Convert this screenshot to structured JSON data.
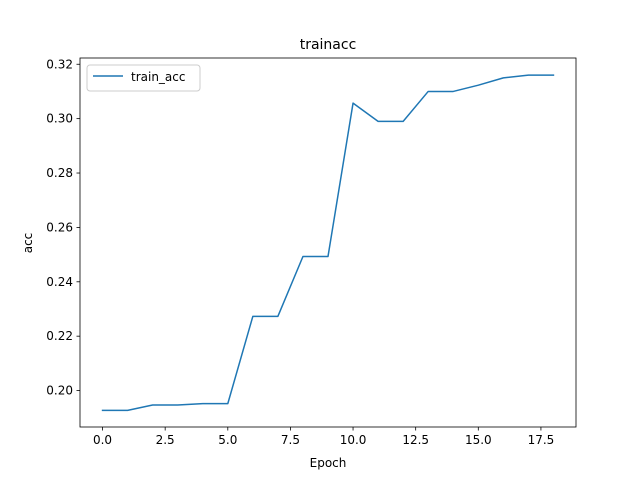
{
  "chart_data": {
    "type": "line",
    "title": "trainacc",
    "xlabel": "Epoch",
    "ylabel": "acc",
    "xlim": [
      -0.9,
      18.9
    ],
    "ylim": [
      0.1866,
      0.3223
    ],
    "xticks": [
      0.0,
      2.5,
      5.0,
      7.5,
      10.0,
      12.5,
      15.0,
      17.5
    ],
    "xtick_labels": [
      "0.0",
      "2.5",
      "5.0",
      "7.5",
      "10.0",
      "12.5",
      "15.0",
      "17.5"
    ],
    "yticks": [
      0.2,
      0.22,
      0.24,
      0.26,
      0.28,
      0.3,
      0.32
    ],
    "ytick_labels": [
      "0.20",
      "0.22",
      "0.24",
      "0.26",
      "0.28",
      "0.30",
      "0.32"
    ],
    "grid": false,
    "legend_position": "upper-left",
    "series": [
      {
        "name": "train_acc",
        "color": "#1f77b4",
        "x": [
          0,
          1,
          2,
          3,
          4,
          5,
          6,
          7,
          8,
          9,
          10,
          11,
          12,
          13,
          14,
          15,
          16,
          17,
          18
        ],
        "y": [
          0.1927,
          0.1927,
          0.1947,
          0.1947,
          0.1952,
          0.1952,
          0.2273,
          0.2273,
          0.2493,
          0.2493,
          0.3057,
          0.299,
          0.299,
          0.31,
          0.31,
          0.3123,
          0.315,
          0.316,
          0.316
        ]
      }
    ]
  }
}
